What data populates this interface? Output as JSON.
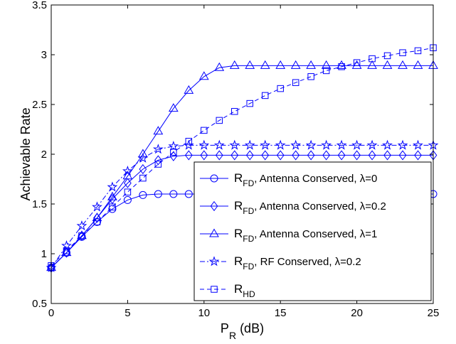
{
  "chart_data": {
    "type": "line",
    "xlabel": "P",
    "xlabel_sub": "R",
    "xlabel_suffix": " (dB)",
    "ylabel": "Achievable Rate",
    "xlim": [
      0,
      25
    ],
    "ylim": [
      0.5,
      3.5
    ],
    "xticks": [
      0,
      5,
      10,
      15,
      20,
      25
    ],
    "yticks": [
      0.5,
      1,
      1.5,
      2,
      2.5,
      3,
      3.5
    ],
    "grid": false,
    "legend_position": "bottom-right",
    "color": "#0000ff",
    "x": [
      0,
      1,
      2,
      3,
      4,
      5,
      6,
      7,
      8,
      9,
      10,
      11,
      12,
      13,
      14,
      15,
      16,
      17,
      18,
      19,
      20,
      21,
      22,
      23,
      24,
      25
    ],
    "series": [
      {
        "name": "R_FD, Antenna Conserved, λ=0",
        "label_main": "R",
        "label_sub": "FD",
        "label_rest": ", Antenna Conserved, λ=0",
        "marker": "circle",
        "dash": "solid",
        "values": [
          0.86,
          1.01,
          1.17,
          1.32,
          1.45,
          1.54,
          1.59,
          1.6,
          1.6,
          1.6,
          1.6,
          1.6,
          1.6,
          1.6,
          1.6,
          1.6,
          1.6,
          1.6,
          1.6,
          1.6,
          1.6,
          1.6,
          1.6,
          1.6,
          1.6,
          1.6
        ]
      },
      {
        "name": "R_FD, Antenna Conserved, λ=0.2",
        "label_main": "R",
        "label_sub": "FD",
        "label_rest": ", Antenna Conserved, λ=0.2",
        "marker": "diamond",
        "dash": "solid",
        "values": [
          0.86,
          1.01,
          1.18,
          1.36,
          1.55,
          1.71,
          1.85,
          1.94,
          1.98,
          1.99,
          1.99,
          1.99,
          1.99,
          1.99,
          1.99,
          1.99,
          1.99,
          1.99,
          1.99,
          1.99,
          1.99,
          1.99,
          1.99,
          1.99,
          1.99,
          1.99
        ]
      },
      {
        "name": "R_FD, Antenna Conserved, λ=1",
        "label_main": "R",
        "label_sub": "FD",
        "label_rest": ", Antenna Conserved, λ=1",
        "marker": "triangle",
        "dash": "solid",
        "values": [
          0.86,
          1.01,
          1.18,
          1.36,
          1.57,
          1.78,
          2.0,
          2.23,
          2.46,
          2.64,
          2.78,
          2.87,
          2.89,
          2.89,
          2.89,
          2.89,
          2.89,
          2.89,
          2.89,
          2.89,
          2.89,
          2.89,
          2.89,
          2.89,
          2.89,
          2.89
        ]
      },
      {
        "name": "R_FD, RF Conserved, λ=0.2",
        "label_main": "R",
        "label_sub": "FD",
        "label_rest": ", RF Conserved, λ=0.2",
        "marker": "star",
        "dash": "dashdot",
        "values": [
          0.86,
          1.08,
          1.28,
          1.47,
          1.67,
          1.83,
          1.96,
          2.05,
          2.08,
          2.09,
          2.09,
          2.09,
          2.09,
          2.09,
          2.09,
          2.09,
          2.09,
          2.09,
          2.09,
          2.09,
          2.09,
          2.09,
          2.09,
          2.09,
          2.09,
          2.09
        ]
      },
      {
        "name": "R_HD",
        "label_main": "R",
        "label_sub": "HD",
        "label_rest": "",
        "marker": "square",
        "dash": "dashed",
        "values": [
          0.88,
          1.03,
          1.18,
          1.32,
          1.47,
          1.62,
          1.76,
          1.9,
          2.02,
          2.13,
          2.24,
          2.34,
          2.43,
          2.51,
          2.59,
          2.66,
          2.72,
          2.78,
          2.84,
          2.88,
          2.92,
          2.96,
          2.99,
          3.02,
          3.04,
          3.07
        ]
      }
    ]
  }
}
